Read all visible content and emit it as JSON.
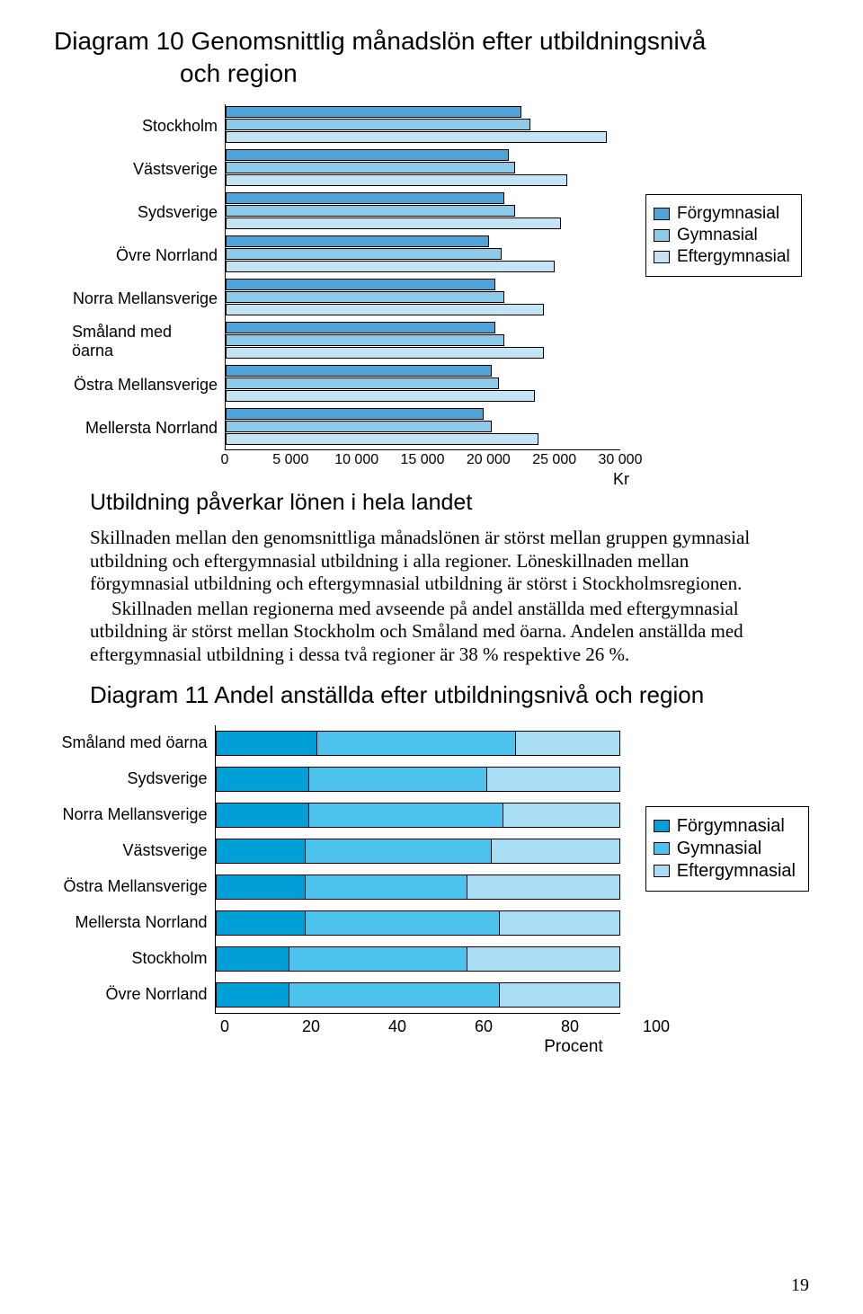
{
  "chart1": {
    "title_line1": "Diagram 10 Genomsnittlig månadslön efter utbildningsnivå",
    "title_line2": "och region",
    "xmax": 30000,
    "xticks": [
      0,
      5000,
      10000,
      15000,
      20000,
      25000,
      30000
    ],
    "xtick_labels": [
      "0",
      "5 000",
      "10 000",
      "15 000",
      "20 000",
      "25 000",
      "30 000"
    ],
    "x_unit": "Kr",
    "series": [
      "Förgymnasial",
      "Gymnasial",
      "Eftergymnasial"
    ],
    "series_colors": [
      "#4ea4d9",
      "#8ec9e8",
      "#c4e4f5"
    ],
    "categories": [
      {
        "label": "Stockholm",
        "values": [
          22500,
          23200,
          29000
        ]
      },
      {
        "label": "Västsverige",
        "values": [
          21500,
          22000,
          26000
        ]
      },
      {
        "label": "Sydsverige",
        "values": [
          21200,
          22000,
          25500
        ]
      },
      {
        "label": "Övre Norrland",
        "values": [
          20000,
          21000,
          25000
        ]
      },
      {
        "label": "Norra Mellansverige",
        "values": [
          20500,
          21200,
          24200
        ]
      },
      {
        "label": "Småland med öarna",
        "values": [
          20500,
          21200,
          24200
        ]
      },
      {
        "label": "Östra Mellansverige",
        "values": [
          20200,
          20800,
          23500
        ]
      },
      {
        "label": "Mellersta Norrland",
        "values": [
          19600,
          20200,
          23800
        ]
      }
    ],
    "legend_items": [
      "Förgymnasial",
      "Gymnasial",
      "Eftergymnasial"
    ]
  },
  "body": {
    "heading": "Utbildning påverkar lönen i hela landet",
    "p1": "Skillnaden mellan den genomsnittliga månadslönen är störst mellan gruppen gymnasial utbildning och eftergymnasial utbildning i alla regioner. Löneskillnaden mellan förgymnasial utbildning och eftergymnasial utbildning är störst i Stockholmsregionen.",
    "p2": "Skillnaden mellan regionerna med avseende på andel anställda med eftergymnasial utbildning är störst mellan Stockholm och Småland med öarna. Andelen anställda med eftergymnasial utbildning i dessa två regioner är 38 % respektive 26 %."
  },
  "chart2": {
    "title": "Diagram 11 Andel anställda efter utbildningsnivå och region",
    "xmax": 100,
    "xticks": [
      0,
      20,
      40,
      60,
      80,
      100
    ],
    "x_unit": "Procent",
    "series": [
      "Förgymnasial",
      "Gymnasial",
      "Eftergymnasial"
    ],
    "series_colors": [
      "#009fd8",
      "#4cc2ec",
      "#a9ddf3"
    ],
    "categories": [
      {
        "label": "Småland med öarna",
        "values": [
          25,
          49,
          26
        ]
      },
      {
        "label": "Sydsverige",
        "values": [
          23,
          44,
          33
        ]
      },
      {
        "label": "Norra Mellansverige",
        "values": [
          23,
          48,
          29
        ]
      },
      {
        "label": "Västsverige",
        "values": [
          22,
          46,
          32
        ]
      },
      {
        "label": "Östra Mellansverige",
        "values": [
          22,
          40,
          38
        ]
      },
      {
        "label": "Mellersta Norrland",
        "values": [
          22,
          48,
          30
        ]
      },
      {
        "label": "Stockholm",
        "values": [
          18,
          44,
          38
        ]
      },
      {
        "label": "Övre Norrland",
        "values": [
          18,
          52,
          30
        ]
      }
    ],
    "legend_items": [
      "Förgymnasial",
      "Gymnasial",
      "Eftergymnasial"
    ]
  },
  "page_number": "19"
}
